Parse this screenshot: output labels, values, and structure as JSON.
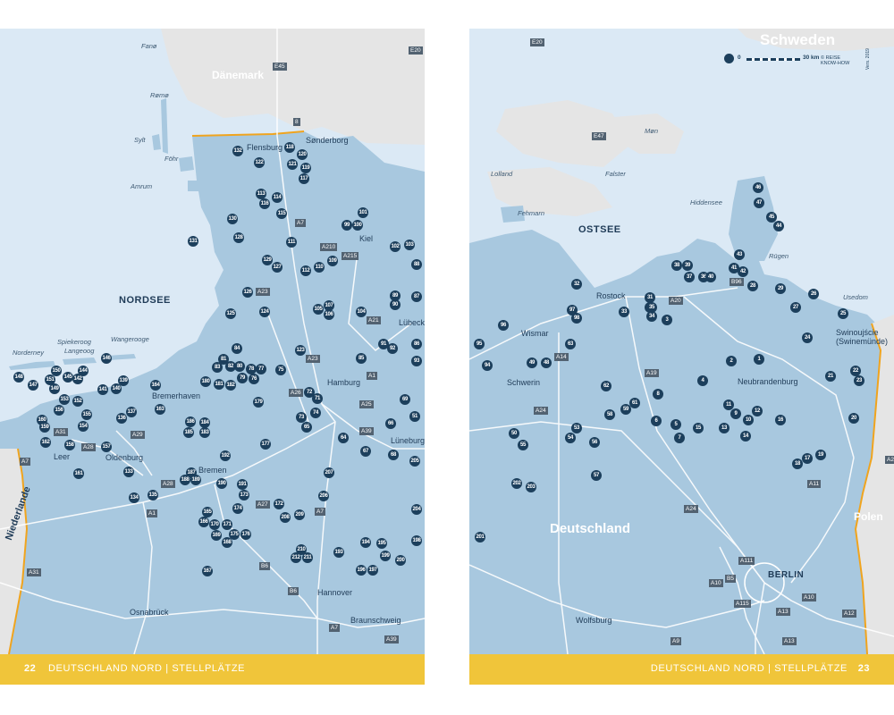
{
  "colors": {
    "sea": "#dbe9f5",
    "land_de": "#a8c8df",
    "land_other": "#e5e5e5",
    "marker": "#1c3f5c",
    "footer": "#f0c53a",
    "border": "#f0a41e",
    "city_dot": "#f0c53a"
  },
  "footer": {
    "left_page_number": "22",
    "left_title": "DEUTSCHLAND NORD | STELLPLÄTZE",
    "right_title": "DEUTSCHLAND NORD | STELLPLÄTZE",
    "right_page_number": "23"
  },
  "left_map": {
    "seas": [
      "NORDSEE"
    ],
    "countries": [
      "Dänemark",
      "Niederlande"
    ],
    "cities": [
      "Flensburg",
      "Sønderborg",
      "Kiel",
      "Lübeck",
      "Hamburg",
      "Lüneburg",
      "Bremerhaven",
      "Bremen",
      "Oldenburg",
      "Leer",
      "Hannover",
      "Osnabrück",
      "Braunschweig"
    ],
    "islands": [
      "Fanø",
      "Rømø",
      "Sylt",
      "Föhr",
      "Amrum",
      "Norderney",
      "Spiekeroog",
      "Langeoog",
      "Wangerooge"
    ],
    "roads": [
      "E20",
      "E45",
      "8",
      "A7",
      "A210",
      "A215",
      "A23",
      "A21",
      "A1",
      "A26",
      "A25",
      "A39",
      "A28",
      "A31",
      "A29",
      "A27",
      "A2",
      "B6",
      "E20"
    ],
    "sites": [
      "132",
      "122",
      "118",
      "120",
      "121",
      "119",
      "117",
      "113",
      "116",
      "114",
      "115",
      "130",
      "99",
      "100",
      "101",
      "131",
      "128",
      "111",
      "102",
      "103",
      "129",
      "127",
      "112",
      "110",
      "109",
      "88",
      "126",
      "124",
      "125",
      "105",
      "107",
      "106",
      "104",
      "89",
      "90",
      "87",
      "84",
      "123",
      "91",
      "92",
      "86",
      "85",
      "93",
      "81",
      "83",
      "82",
      "80",
      "78",
      "77",
      "76",
      "79",
      "75",
      "180",
      "181",
      "182",
      "72",
      "71",
      "74",
      "73",
      "65",
      "69",
      "66",
      "51",
      "186",
      "184",
      "185",
      "183",
      "179",
      "177",
      "64",
      "67",
      "68",
      "205",
      "192",
      "207",
      "187",
      "188",
      "189",
      "190",
      "191",
      "173",
      "174",
      "172",
      "208",
      "209",
      "206",
      "165",
      "166",
      "170",
      "171",
      "169",
      "175",
      "176",
      "168",
      "210",
      "212",
      "211",
      "193",
      "194",
      "195",
      "199",
      "200",
      "196",
      "197",
      "198",
      "204",
      "167",
      "148",
      "147",
      "150",
      "151",
      "149",
      "145",
      "142",
      "144",
      "146",
      "153",
      "152",
      "141",
      "140",
      "139",
      "164",
      "163",
      "137",
      "136",
      "155",
      "156",
      "154",
      "160",
      "159",
      "162",
      "158",
      "157",
      "161",
      "133",
      "134",
      "135",
      "143",
      "138"
    ]
  },
  "right_map": {
    "seas": [
      "OSTSEE"
    ],
    "countries": [
      "Schweden",
      "Deutschland",
      "Polen"
    ],
    "cities": [
      "Rostock",
      "Wismar",
      "Schwerin",
      "Neubrandenburg",
      "Swinoujście (Swinemünde)",
      "BERLIN",
      "Wolfsburg"
    ],
    "islands": [
      "Møn",
      "Lolland",
      "Falster",
      "Fehmarn",
      "Hiddensee",
      "Rügen",
      "Usedom"
    ],
    "roads": [
      "E20",
      "E47",
      "A20",
      "B96",
      "A14",
      "A19",
      "A24",
      "A11",
      "A111",
      "A10",
      "B5",
      "A115",
      "A13",
      "A12",
      "A9",
      "A2",
      "A13"
    ],
    "sites": [
      "46",
      "47",
      "45",
      "44",
      "43",
      "38",
      "39",
      "37",
      "36",
      "41",
      "42",
      "40",
      "28",
      "29",
      "26",
      "27",
      "25",
      "24",
      "32",
      "31",
      "30",
      "35",
      "34",
      "3",
      "33",
      "97",
      "98",
      "96",
      "95",
      "63",
      "94",
      "49",
      "48",
      "62",
      "58",
      "59",
      "61",
      "8",
      "2",
      "1",
      "4",
      "21",
      "22",
      "23",
      "11",
      "9",
      "12",
      "10",
      "16",
      "14",
      "7",
      "5",
      "6",
      "15",
      "13",
      "20",
      "50",
      "55",
      "53",
      "54",
      "56",
      "57",
      "18",
      "17",
      "19",
      "202",
      "203",
      "201"
    ]
  },
  "scale": {
    "zero": "0",
    "distance": "30 km",
    "copyright": "© REISE KNOW-HOW",
    "year": "Vers. 2019"
  }
}
